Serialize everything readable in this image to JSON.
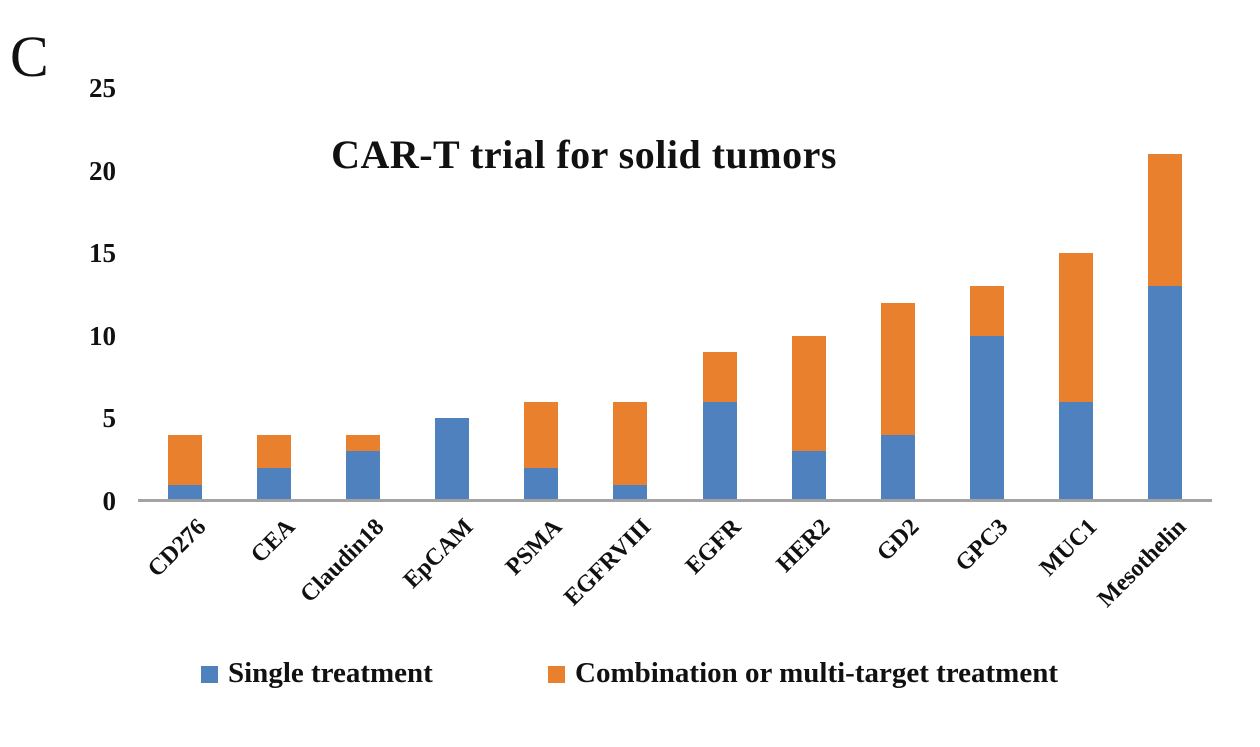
{
  "panel_label": "C",
  "title": "CAR-T trial for solid tumors",
  "colors": {
    "single_treatment": "#4E81BD",
    "combination_treatment": "#E8802E",
    "axis_line": "#A3A3A3"
  },
  "legend": [
    {
      "label": "Single treatment",
      "color": "#4E81BD"
    },
    {
      "label": "Combination or multi-target treatment",
      "color": "#E8802E"
    }
  ],
  "chart_data": {
    "type": "bar",
    "stacked": true,
    "title": "CAR-T trial for solid tumors",
    "xlabel": "",
    "ylabel": "",
    "ylim": [
      0,
      25
    ],
    "yticks": [
      0,
      5,
      10,
      15,
      20,
      25
    ],
    "grid": false,
    "legend_position": "bottom",
    "categories": [
      "CD276",
      "CEA",
      "Claudin18",
      "EpCAM",
      "PSMA",
      "EGFRVIII",
      "EGFR",
      "HER2",
      "GD2",
      "GPC3",
      "MUC1",
      "Mesothelin"
    ],
    "series": [
      {
        "name": "Single treatment",
        "color": "#4E81BD",
        "values": [
          1,
          2,
          3,
          5,
          2,
          1,
          6,
          3,
          4,
          10,
          6,
          13
        ]
      },
      {
        "name": "Combination or multi-target treatment",
        "color": "#E8802E",
        "values": [
          3,
          2,
          1,
          0,
          4,
          5,
          3,
          7,
          8,
          3,
          9,
          8
        ]
      }
    ],
    "totals": [
      4,
      4,
      4,
      5,
      6,
      6,
      9,
      10,
      12,
      13,
      15,
      21
    ]
  }
}
